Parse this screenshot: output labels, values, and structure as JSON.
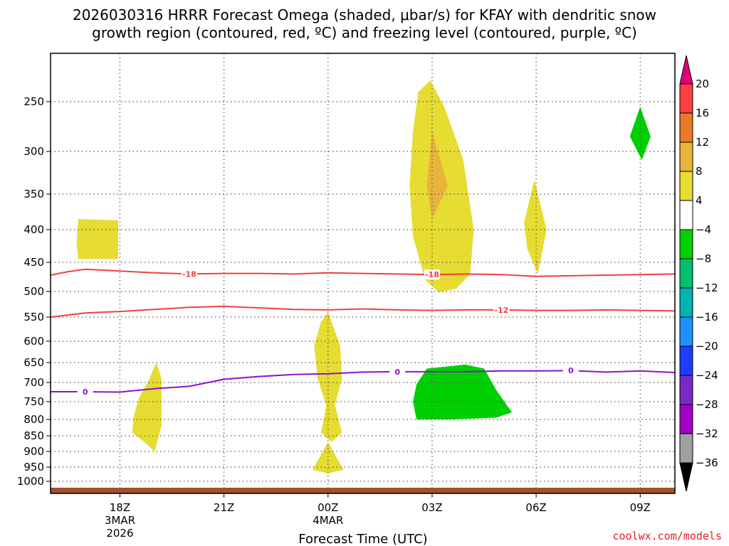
{
  "chart_data": {
    "type": "heatmap",
    "title_lines": [
      "2026030316 HRRR Forecast Omega (shaded, μbar/s) for KFAY with dendritic snow",
      "growth region (contoured, red, ºC) and freezing level (contoured, purple, ºC)"
    ],
    "xlabel": "Forecast Time (UTC)",
    "credit": "coolwx.com/models",
    "x_hours_range": [
      -2,
      16
    ],
    "y_pressure_range": [
      200,
      1020
    ],
    "x_ticks": [
      {
        "hour": 0,
        "lines": [
          "18Z",
          "3MAR",
          "2026"
        ]
      },
      {
        "hour": 3,
        "lines": [
          "21Z"
        ]
      },
      {
        "hour": 6,
        "lines": [
          "00Z",
          "4MAR"
        ]
      },
      {
        "hour": 9,
        "lines": [
          "03Z"
        ]
      },
      {
        "hour": 12,
        "lines": [
          "06Z"
        ]
      },
      {
        "hour": 15,
        "lines": [
          "09Z"
        ]
      }
    ],
    "y_ticks": [
      250,
      300,
      350,
      400,
      450,
      500,
      550,
      600,
      650,
      700,
      750,
      800,
      850,
      900,
      950,
      1000
    ],
    "colorbar": {
      "levels": [
        20,
        16,
        12,
        8,
        4,
        -4,
        -8,
        -12,
        -16,
        -20,
        -24,
        -28,
        -32,
        -36
      ],
      "colors": [
        "#ff3f3f",
        "#e87a28",
        "#e8b43a",
        "#e6dc32",
        "#ffffff",
        "#00d000",
        "#00c070",
        "#00b4b4",
        "#1e90ff",
        "#1e3cff",
        "#7a28c8",
        "#a000c8",
        "#a0a0a0"
      ],
      "top_color": "#e0007a",
      "bottom_color": "#000000"
    },
    "contours": [
      {
        "name": "dgz-minus18",
        "label": "-18",
        "color": "#f04040",
        "points": [
          [
            -2,
            472
          ],
          [
            -1.5,
            466
          ],
          [
            -1,
            462
          ],
          [
            0,
            465
          ],
          [
            1,
            468
          ],
          [
            2,
            470
          ],
          [
            3,
            469
          ],
          [
            4,
            469
          ],
          [
            5,
            470
          ],
          [
            6,
            468
          ],
          [
            7,
            469
          ],
          [
            8,
            470
          ],
          [
            9,
            471
          ],
          [
            10,
            470
          ],
          [
            11,
            471
          ],
          [
            12,
            474
          ],
          [
            13,
            473
          ],
          [
            14,
            472
          ],
          [
            15,
            471
          ],
          [
            16,
            470
          ]
        ],
        "label_positions": [
          [
            2,
            470
          ],
          [
            9,
            471
          ]
        ]
      },
      {
        "name": "dgz-minus12",
        "label": "-12",
        "color": "#f04040",
        "points": [
          [
            -2,
            550
          ],
          [
            -1.5,
            546
          ],
          [
            -1,
            542
          ],
          [
            0,
            539
          ],
          [
            1,
            535
          ],
          [
            2,
            531
          ],
          [
            3,
            529
          ],
          [
            4,
            532
          ],
          [
            5,
            535
          ],
          [
            6,
            536
          ],
          [
            7,
            534
          ],
          [
            8,
            536
          ],
          [
            9,
            537
          ],
          [
            10,
            536
          ],
          [
            11,
            536
          ],
          [
            12,
            537
          ],
          [
            13,
            537
          ],
          [
            14,
            536
          ],
          [
            15,
            537
          ],
          [
            16,
            538
          ]
        ],
        "label_positions": [
          [
            11,
            536
          ]
        ]
      },
      {
        "name": "freezing-level",
        "label": "0",
        "color": "#9010c8",
        "points": [
          [
            -2,
            724
          ],
          [
            -1,
            724
          ],
          [
            0,
            725
          ],
          [
            1,
            716
          ],
          [
            2,
            710
          ],
          [
            3,
            692
          ],
          [
            4,
            685
          ],
          [
            5,
            680
          ],
          [
            6,
            678
          ],
          [
            7,
            674
          ],
          [
            8,
            673
          ],
          [
            9,
            673
          ],
          [
            10,
            673
          ],
          [
            11,
            671
          ],
          [
            12,
            671
          ],
          [
            13,
            670
          ],
          [
            14,
            674
          ],
          [
            15,
            671
          ],
          [
            16,
            675
          ]
        ],
        "label_positions": [
          [
            -1,
            724
          ],
          [
            8,
            673
          ],
          [
            13,
            670
          ]
        ]
      }
    ],
    "regions": [
      {
        "name": "omega-4to8-upper-a",
        "color": "#e6dc32",
        "points": [
          [
            -1.2,
            385
          ],
          [
            -0.05,
            387
          ],
          [
            -0.05,
            445
          ],
          [
            -1.2,
            445
          ],
          [
            -1.25,
            420
          ]
        ]
      },
      {
        "name": "omega-4to8-lower-a",
        "color": "#e6dc32",
        "points": [
          [
            1.05,
            650
          ],
          [
            1.2,
            690
          ],
          [
            1.2,
            820
          ],
          [
            1.0,
            900
          ],
          [
            0.7,
            870
          ],
          [
            0.35,
            840
          ],
          [
            0.4,
            790
          ],
          [
            0.55,
            740
          ],
          [
            0.8,
            700
          ]
        ]
      },
      {
        "name": "omega-4to8-00z",
        "color": "#e6dc32",
        "points": [
          [
            6.0,
            540
          ],
          [
            6.35,
            610
          ],
          [
            6.4,
            690
          ],
          [
            6.2,
            760
          ],
          [
            6.4,
            840
          ],
          [
            6.1,
            870
          ],
          [
            5.8,
            840
          ],
          [
            5.95,
            760
          ],
          [
            5.7,
            690
          ],
          [
            5.6,
            610
          ],
          [
            5.8,
            560
          ]
        ]
      },
      {
        "name": "omega-4to8-00z-low",
        "color": "#e6dc32",
        "points": [
          [
            6.0,
            870
          ],
          [
            6.45,
            960
          ],
          [
            6.0,
            972
          ],
          [
            5.55,
            960
          ]
        ]
      },
      {
        "name": "omega-4to8-03z",
        "color": "#e6dc32",
        "points": [
          [
            8.95,
            228
          ],
          [
            9.35,
            255
          ],
          [
            9.9,
            310
          ],
          [
            10.2,
            400
          ],
          [
            10.1,
            470
          ],
          [
            9.7,
            495
          ],
          [
            9.2,
            502
          ],
          [
            8.8,
            480
          ],
          [
            8.45,
            410
          ],
          [
            8.35,
            340
          ],
          [
            8.45,
            280
          ],
          [
            8.6,
            240
          ]
        ]
      },
      {
        "name": "omega-8to12-03z",
        "color": "#e8b43a",
        "points": [
          [
            9.0,
            280
          ],
          [
            9.45,
            340
          ],
          [
            9.0,
            385
          ],
          [
            8.85,
            340
          ]
        ]
      },
      {
        "name": "omega-4to8-06z",
        "color": "#e6dc32",
        "points": [
          [
            11.95,
            333
          ],
          [
            12.3,
            400
          ],
          [
            12.05,
            470
          ],
          [
            11.75,
            430
          ],
          [
            11.65,
            390
          ]
        ]
      },
      {
        "name": "omega-minus4to8-09z",
        "color": "#00d000",
        "points": [
          [
            15.0,
            255
          ],
          [
            15.3,
            285
          ],
          [
            15.05,
            310
          ],
          [
            14.7,
            285
          ]
        ]
      },
      {
        "name": "omega-minus4to8-04z",
        "color": "#00d000",
        "points": [
          [
            8.85,
            665
          ],
          [
            9.95,
            655
          ],
          [
            10.5,
            665
          ],
          [
            10.85,
            720
          ],
          [
            11.3,
            780
          ],
          [
            10.85,
            795
          ],
          [
            9.5,
            800
          ],
          [
            8.55,
            800
          ],
          [
            8.45,
            750
          ],
          [
            8.55,
            705
          ]
        ]
      }
    ],
    "ground_color": "#a0522d"
  }
}
